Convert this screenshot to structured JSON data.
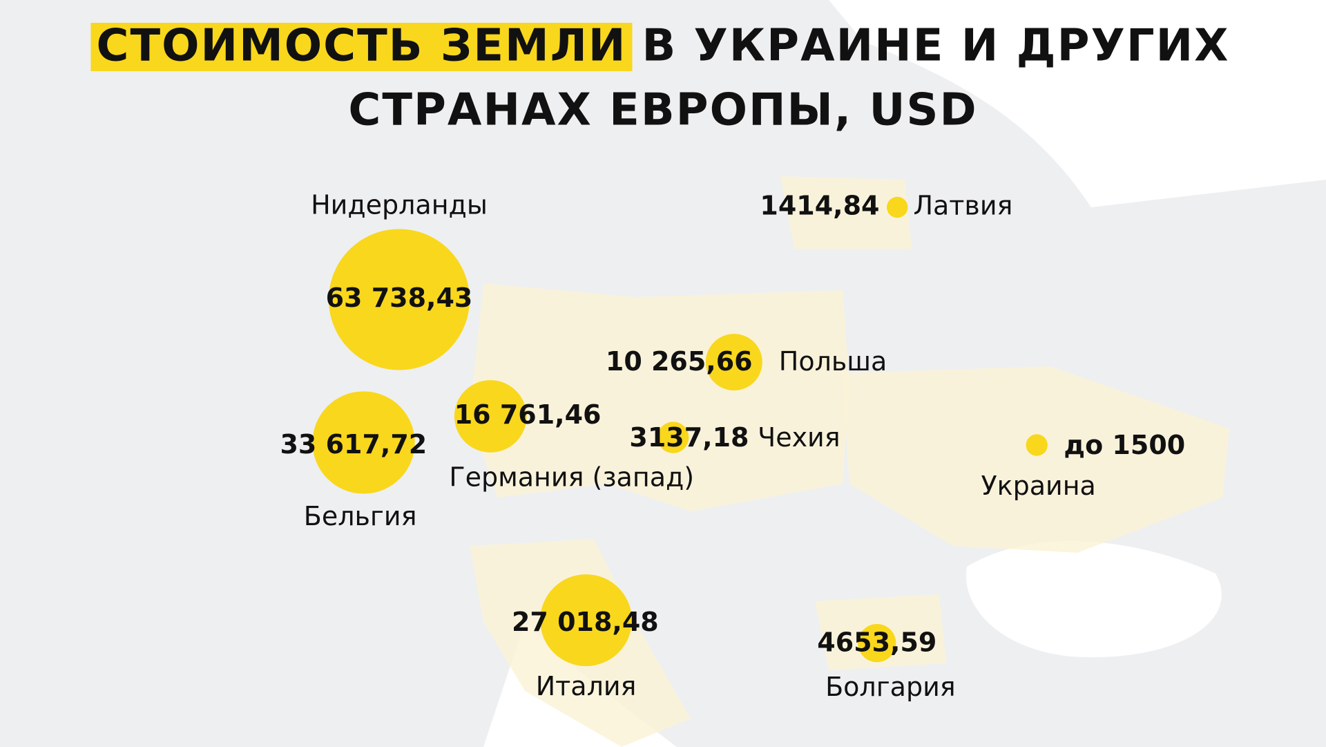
{
  "chart_data": {
    "type": "bubble-map",
    "title": [
      "СТОИМОСТЬ ЗЕМЛИ",
      "В УКРАИНЕ И ДРУГИХ",
      "СТРАНАХ ЕВРОПЫ, USD"
    ],
    "color": "#f9d71c",
    "categories": [
      "Нидерланды",
      "Бельгия",
      "Германия (запад)",
      "Италия",
      "Польша",
      "Чехия",
      "Латвия",
      "Украина",
      "Болгария"
    ],
    "values": [
      63738.43,
      33617.72,
      16761.46,
      27018.48,
      10265.66,
      3137.18,
      1414.84,
      1500,
      4653.59
    ],
    "value_labels": [
      "63 738,43",
      "33 617,72",
      "16 761,46",
      "27 018,48",
      "10 265,66",
      "3137,18",
      "1414,84",
      "до 1500",
      "4653,59"
    ]
  }
}
